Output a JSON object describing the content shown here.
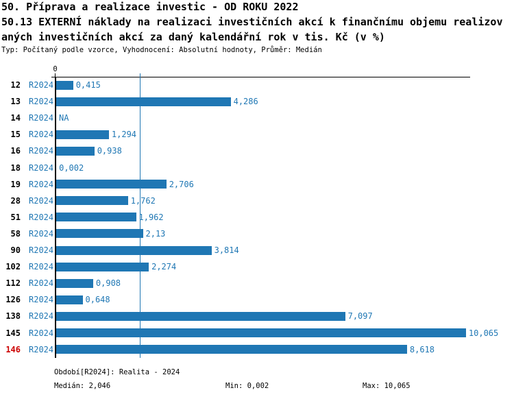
{
  "title": {
    "line1": "50. Příprava a realizace investic - OD ROKU 2022",
    "line2": "50.13 EXTERNÍ náklady na realizaci investičních akcí k finančnímu objemu realizov",
    "line3": "aných investičních akcí za daný kalendářní rok v tis. Kč (v %)",
    "meta": "Typ: Počítaný podle vzorce, Vyhodnocení: Absolutní hodnoty, Průměr: Medián"
  },
  "chart_data": {
    "type": "bar",
    "orientation": "horizontal",
    "title": "50.13 EXTERNÍ náklady na realizaci investičních akcí k finančnímu objemu realizovaných investičních akcí za daný kalendářní rok v tis. Kč (v %)",
    "series_label": "R2024",
    "categories": [
      "12",
      "13",
      "14",
      "15",
      "16",
      "18",
      "19",
      "28",
      "51",
      "58",
      "90",
      "102",
      "112",
      "126",
      "138",
      "145",
      "146"
    ],
    "values": [
      0.415,
      4.286,
      null,
      1.294,
      0.938,
      0.002,
      2.706,
      1.762,
      1.962,
      2.13,
      3.814,
      2.274,
      0.908,
      0.648,
      7.097,
      10.065,
      8.618
    ],
    "value_labels": [
      "0,415",
      "4,286",
      "NA",
      "1,294",
      "0,938",
      "0,002",
      "2,706",
      "1,762",
      "1,962",
      "2,13",
      "3,814",
      "2,274",
      "0,908",
      "0,648",
      "7,097",
      "10,065",
      "8,618"
    ],
    "highlighted_category": "146",
    "median_value": 2.046,
    "min_value": 0.002,
    "max_value": 10.065,
    "axis_zero_label": "0",
    "xlim": [
      0,
      10.6
    ],
    "grid": false,
    "legend": "none",
    "bar_color": "#1f77b4",
    "label_color": "#1f77b4",
    "highlight_color": "#cc0000",
    "axis_color": "#000000"
  },
  "footer": {
    "period": "Období[R2024]: Realita - 2024",
    "median": "Medián: 2,046",
    "min": "Min: 0,002",
    "max": "Max: 10,065"
  }
}
